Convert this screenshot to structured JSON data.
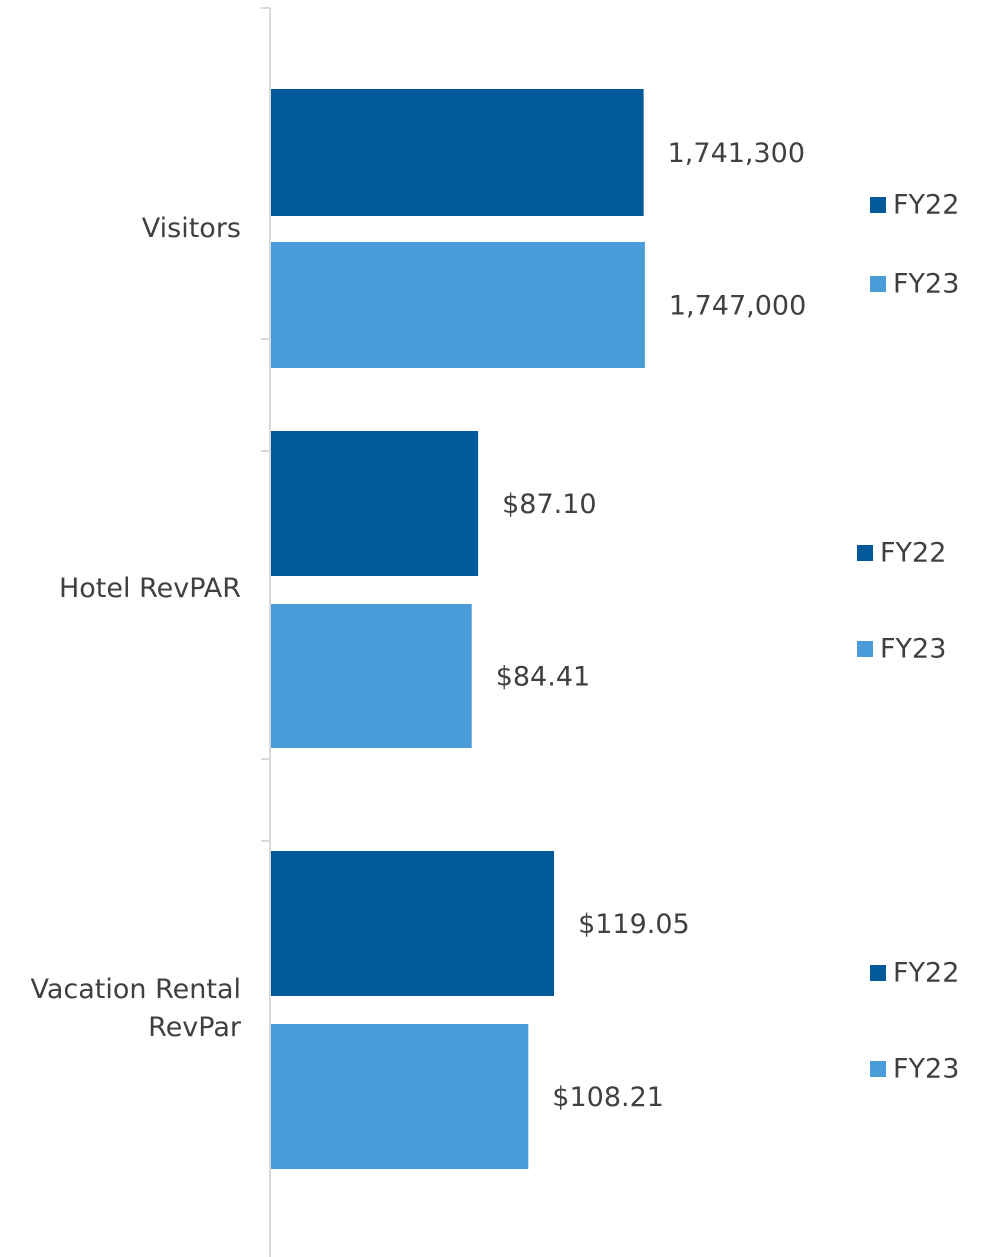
{
  "chart_data": [
    {
      "type": "bar",
      "orientation": "horizontal",
      "categories": [
        "Visitors"
      ],
      "xlim": [
        0,
        3000000
      ],
      "series": [
        {
          "name": "FY22",
          "color": "#035a9b",
          "values": [
            1741300
          ],
          "value_labels": [
            "1,741,300"
          ]
        },
        {
          "name": "FY23",
          "color": "#4a9cd9",
          "values": [
            1747000
          ],
          "value_labels": [
            "1,747,000"
          ]
        }
      ]
    },
    {
      "type": "bar",
      "orientation": "horizontal",
      "categories": [
        "Hotel RevPAR"
      ],
      "xlim": [
        0,
        270
      ],
      "series": [
        {
          "name": "FY22",
          "color": "#035a9b",
          "values": [
            87.1
          ],
          "value_labels": [
            "$87.10"
          ]
        },
        {
          "name": "FY23",
          "color": "#4a9cd9",
          "values": [
            84.41
          ],
          "value_labels": [
            "$84.41"
          ]
        }
      ]
    },
    {
      "type": "bar",
      "orientation": "horizontal",
      "categories": [
        "Vacation Rental RevPar"
      ],
      "xlim": [
        0,
        270
      ],
      "series": [
        {
          "name": "FY22",
          "color": "#035a9b",
          "values": [
            119.05
          ],
          "value_labels": [
            "$119.05"
          ]
        },
        {
          "name": "FY23",
          "color": "#4a9cd9",
          "values": [
            108.21
          ],
          "value_labels": [
            "$108.21"
          ]
        }
      ]
    }
  ]
}
